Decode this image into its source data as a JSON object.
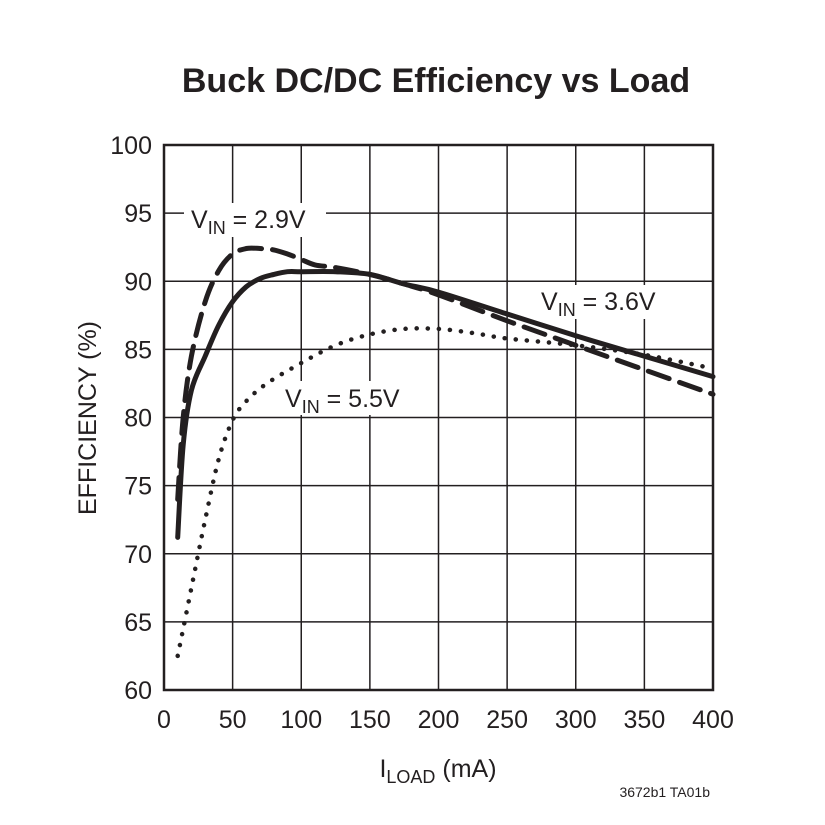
{
  "chart_data": {
    "type": "line",
    "title": "Buck DC/DC Efficiency vs Load",
    "xlabel": {
      "main": "I",
      "sub": "LOAD",
      "rest": " (mA)"
    },
    "ylabel": "EFFICIENCY (%)",
    "xlim": [
      0,
      400
    ],
    "ylim": [
      60,
      100
    ],
    "xticks": [
      0,
      50,
      100,
      150,
      200,
      250,
      300,
      350,
      400
    ],
    "yticks": [
      60,
      65,
      70,
      75,
      80,
      85,
      90,
      95,
      100
    ],
    "grid": true,
    "series": [
      {
        "name": "VIN = 2.9V",
        "label": {
          "main": "V",
          "sub": "IN",
          "rest": " = 2.9V"
        },
        "style": "dashed",
        "x": [
          10,
          14,
          20,
          30,
          40,
          50,
          60,
          70,
          80,
          90,
          100,
          110,
          125,
          150,
          175,
          200,
          250,
          300,
          350,
          400
        ],
        "y": [
          74.0,
          80.0,
          84.5,
          88.5,
          90.8,
          92.0,
          92.4,
          92.4,
          92.3,
          92.0,
          91.6,
          91.2,
          91.0,
          90.5,
          89.8,
          89.0,
          87.1,
          85.3,
          83.5,
          81.7
        ]
      },
      {
        "name": "VIN = 3.6V",
        "label": {
          "main": "V",
          "sub": "IN",
          "rest": " = 3.6V"
        },
        "style": "solid",
        "x": [
          10,
          14,
          20,
          30,
          40,
          50,
          60,
          70,
          80,
          90,
          100,
          125,
          150,
          175,
          200,
          250,
          300,
          350,
          400
        ],
        "y": [
          71.2,
          78.0,
          82.0,
          84.5,
          86.8,
          88.5,
          89.6,
          90.2,
          90.5,
          90.7,
          90.7,
          90.7,
          90.5,
          89.8,
          89.2,
          87.6,
          86.0,
          84.5,
          83.0
        ]
      },
      {
        "name": "VIN = 5.5V",
        "label": {
          "main": "V",
          "sub": "IN",
          "rest": " = 5.5V"
        },
        "style": "dotted",
        "x": [
          10,
          20,
          30,
          40,
          50,
          60,
          75,
          100,
          125,
          150,
          175,
          200,
          225,
          250,
          300,
          350,
          400
        ],
        "y": [
          62.5,
          67.5,
          72.5,
          77.0,
          79.8,
          81.2,
          82.5,
          84.0,
          85.3,
          86.1,
          86.5,
          86.5,
          86.2,
          85.8,
          85.3,
          84.6,
          83.6
        ]
      }
    ],
    "figure_id": "3672b1 TA01b"
  }
}
